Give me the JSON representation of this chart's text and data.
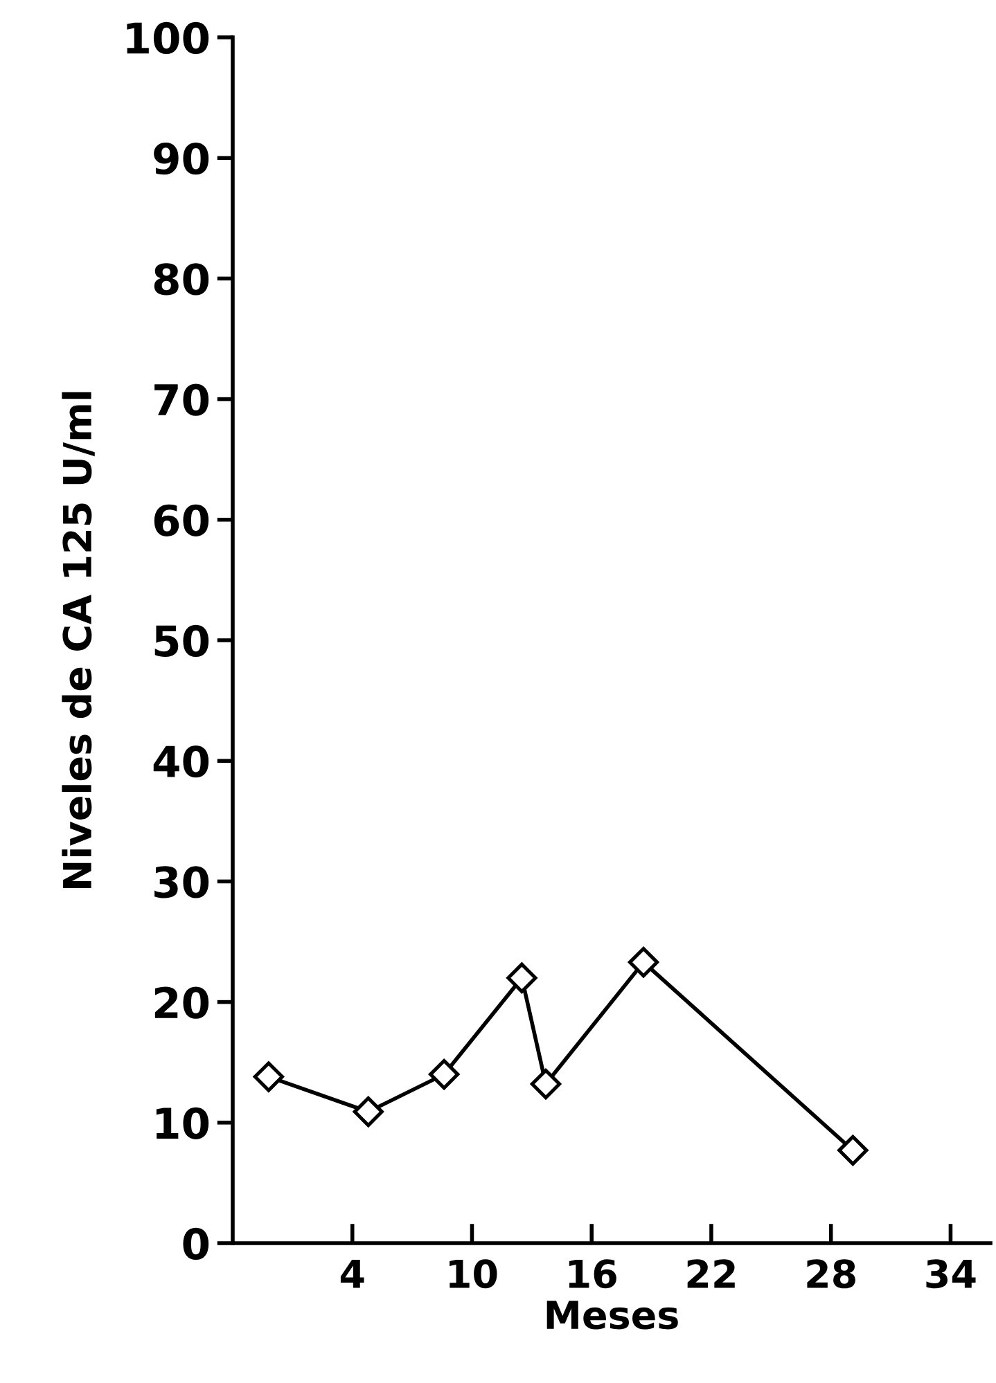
{
  "chart_data": {
    "type": "line",
    "xlabel": "Meses",
    "ylabel": "Niveles de CA 125 U/ml",
    "x": [
      -0.2,
      4.8,
      8.6,
      12.5,
      13.7,
      18.6,
      29.1
    ],
    "series": [
      {
        "color": "#000000",
        "values": [
          13.8,
          10.9,
          14.0,
          22.0,
          13.2,
          23.3,
          7.7
        ]
      }
    ],
    "xlim": [
      -2,
      36
    ],
    "xticks": [
      4,
      10,
      16,
      22,
      28,
      34
    ],
    "ylim": [
      0,
      100
    ],
    "yticks": [
      0,
      10,
      20,
      30,
      40,
      50,
      60,
      70,
      80,
      90,
      100
    ],
    "marker": "diamond",
    "line_style": "solid",
    "grid": false,
    "legend": false
  }
}
